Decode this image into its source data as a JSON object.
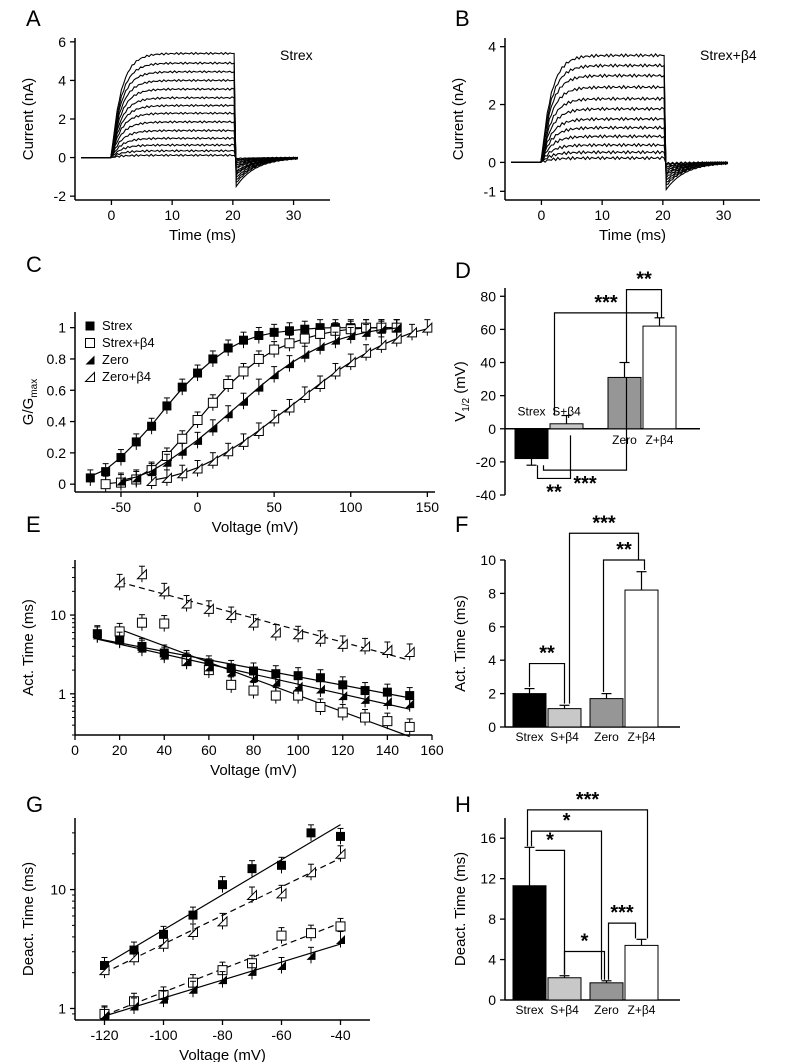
{
  "figure": {
    "panels": {
      "A": "A",
      "B": "B",
      "C": "C",
      "D": "D",
      "E": "E",
      "F": "F",
      "G": "G",
      "H": "H"
    }
  },
  "chart_data": [
    {
      "id": "A",
      "type": "line",
      "annotation": "Strex",
      "xlabel": "Time (ms)",
      "ylabel": "Current (nA)",
      "xlim": [
        -6,
        36
      ],
      "ylim": [
        -2.2,
        6.2
      ],
      "xticks": [
        0,
        10,
        20,
        30
      ],
      "yticks": [
        -2,
        0,
        2,
        4,
        6
      ],
      "series": [
        {
          "plateau": 5.4,
          "tail": -1.6
        },
        {
          "plateau": 4.9,
          "tail": -1.4
        },
        {
          "plateau": 4.45,
          "tail": -1.25
        },
        {
          "plateau": 4.0,
          "tail": -1.1
        },
        {
          "plateau": 3.55,
          "tail": -0.95
        },
        {
          "plateau": 3.1,
          "tail": -0.85
        },
        {
          "plateau": 2.7,
          "tail": -0.75
        },
        {
          "plateau": 2.3,
          "tail": -0.6
        },
        {
          "plateau": 1.85,
          "tail": -0.5
        },
        {
          "plateau": 1.4,
          "tail": -0.4
        },
        {
          "plateau": 1.0,
          "tail": -0.3
        },
        {
          "plateau": 0.65,
          "tail": -0.2
        },
        {
          "plateau": 0.35,
          "tail": -0.12
        },
        {
          "plateau": 0.12,
          "tail": -0.05
        }
      ]
    },
    {
      "id": "B",
      "type": "line",
      "annotation": "Strex+β4",
      "xlabel": "Time (ms)",
      "ylabel": "Current (nA)",
      "xlim": [
        -6,
        36
      ],
      "ylim": [
        -1.3,
        4.3
      ],
      "xticks": [
        0,
        10,
        20,
        30
      ],
      "yticks": [
        -1,
        0,
        2,
        4
      ],
      "series": [
        {
          "plateau": 3.7,
          "tail": -1.0
        },
        {
          "plateau": 3.35,
          "tail": -0.85
        },
        {
          "plateau": 3.0,
          "tail": -0.75
        },
        {
          "plateau": 2.6,
          "tail": -0.65
        },
        {
          "plateau": 2.2,
          "tail": -0.55
        },
        {
          "plateau": 1.85,
          "tail": -0.45
        },
        {
          "plateau": 1.5,
          "tail": -0.38
        },
        {
          "plateau": 1.2,
          "tail": -0.3
        },
        {
          "plateau": 0.9,
          "tail": -0.22
        },
        {
          "plateau": 0.6,
          "tail": -0.15
        },
        {
          "plateau": 0.35,
          "tail": -0.08
        },
        {
          "plateau": 0.15,
          "tail": -0.04
        }
      ]
    },
    {
      "id": "C",
      "type": "scatter",
      "xlabel": "Voltage (mV)",
      "ylabel": "G/G",
      "ylabel_sub": "max",
      "xlim": [
        -80,
        155
      ],
      "ylim": [
        -0.05,
        1.1
      ],
      "xticks": [
        -50,
        0,
        50,
        100,
        150
      ],
      "yticks": [
        0,
        0.2,
        0.4,
        0.6,
        0.8,
        1
      ],
      "series": [
        {
          "name": "Strex",
          "marker": "square-filled",
          "line": "solid",
          "x": [
            -70,
            -60,
            -50,
            -40,
            -30,
            -20,
            -10,
            0,
            10,
            20,
            30,
            40,
            50,
            60,
            70,
            80,
            90,
            100,
            110,
            120,
            130
          ],
          "y": [
            0.04,
            0.08,
            0.17,
            0.27,
            0.37,
            0.5,
            0.62,
            0.71,
            0.8,
            0.87,
            0.92,
            0.95,
            0.97,
            0.98,
            0.99,
            1.0,
            1.0,
            1.0,
            1.0,
            1.0,
            1.0
          ]
        },
        {
          "name": "Strex+β4",
          "marker": "square-open",
          "line": "solid",
          "x": [
            -60,
            -50,
            -40,
            -30,
            -20,
            -10,
            0,
            10,
            20,
            30,
            40,
            50,
            60,
            70,
            80,
            90,
            100,
            110,
            120,
            130
          ],
          "y": [
            0.0,
            0.01,
            0.03,
            0.09,
            0.18,
            0.29,
            0.41,
            0.52,
            0.64,
            0.72,
            0.8,
            0.86,
            0.9,
            0.93,
            0.96,
            0.98,
            0.99,
            1.0,
            1.0,
            1.0
          ]
        },
        {
          "name": "Zero",
          "marker": "triangle-filled",
          "line": "solid",
          "x": [
            -50,
            -40,
            -30,
            -20,
            -10,
            0,
            10,
            20,
            30,
            40,
            50,
            60,
            70,
            80,
            90,
            100,
            110,
            120,
            130
          ],
          "y": [
            0.02,
            0.04,
            0.08,
            0.14,
            0.21,
            0.28,
            0.36,
            0.45,
            0.53,
            0.62,
            0.7,
            0.77,
            0.83,
            0.88,
            0.92,
            0.95,
            0.97,
            0.99,
            1.0
          ]
        },
        {
          "name": "Zero+β4",
          "marker": "triangle-open",
          "line": "solid",
          "x": [
            -30,
            -20,
            -10,
            0,
            10,
            20,
            30,
            40,
            50,
            60,
            70,
            80,
            90,
            100,
            110,
            120,
            130,
            140,
            150
          ],
          "y": [
            0.02,
            0.04,
            0.07,
            0.1,
            0.15,
            0.21,
            0.27,
            0.34,
            0.42,
            0.49,
            0.57,
            0.64,
            0.72,
            0.78,
            0.84,
            0.89,
            0.93,
            0.97,
            1.0
          ]
        }
      ],
      "legend": [
        "Strex",
        "Strex+β4",
        "Zero",
        "Zero+β4"
      ]
    },
    {
      "id": "D",
      "type": "bar",
      "ylabel": "V",
      "ylabel_sub": "1/2",
      "ylabel_unit": " (mV)",
      "ylim": [
        -40,
        85
      ],
      "yticks": [
        -40,
        -20,
        0,
        20,
        40,
        60,
        80
      ],
      "categories": [
        "Strex",
        "S+β4",
        "Zero",
        "Z+β4"
      ],
      "values": [
        -18,
        3,
        31,
        62
      ],
      "errors": [
        4,
        5,
        9,
        5
      ],
      "colors": [
        "#000000",
        "#c8c8c8",
        "#969696",
        "#ffffff"
      ],
      "significance": [
        {
          "pair": [
            0,
            1
          ],
          "label": "**"
        },
        {
          "pair": [
            0,
            2
          ],
          "label": "***"
        },
        {
          "pair": [
            1,
            3
          ],
          "label": "***"
        },
        {
          "pair": [
            2,
            3
          ],
          "label": "**"
        }
      ]
    },
    {
      "id": "E",
      "type": "scatter",
      "yscale": "log",
      "xlabel": "Voltage (mV)",
      "ylabel": "Act. Time (ms)",
      "xlim": [
        0,
        160
      ],
      "ylim": [
        0.3,
        50
      ],
      "xticks": [
        0,
        20,
        40,
        60,
        80,
        100,
        120,
        140,
        160
      ],
      "yticks": [
        1,
        10
      ],
      "series": [
        {
          "name": "Strex",
          "marker": "square-filled",
          "line": "solid",
          "x": [
            10,
            20,
            30,
            40,
            50,
            60,
            70,
            80,
            90,
            100,
            110,
            120,
            130,
            140,
            150
          ],
          "y": [
            5.8,
            4.9,
            4.0,
            3.3,
            2.8,
            2.4,
            2.1,
            1.95,
            1.8,
            1.7,
            1.6,
            1.3,
            1.1,
            1.05,
            0.95
          ]
        },
        {
          "name": "Strex+β4",
          "marker": "square-open",
          "line": "solid",
          "x": [
            20,
            30,
            40,
            50,
            60,
            70,
            80,
            90,
            100,
            110,
            120,
            130,
            140,
            150
          ],
          "y": [
            6.2,
            8.0,
            7.8,
            2.6,
            2.0,
            1.3,
            1.1,
            0.95,
            0.95,
            0.68,
            0.58,
            0.5,
            0.45,
            0.38
          ]
        },
        {
          "name": "Zero",
          "marker": "triangle-filled",
          "line": "solid",
          "x": [
            10,
            20,
            30,
            40,
            50,
            60,
            70,
            80,
            90,
            100,
            110,
            120,
            130,
            140,
            150
          ],
          "y": [
            5.6,
            4.8,
            3.8,
            3.1,
            2.6,
            2.2,
            1.9,
            1.6,
            1.4,
            1.25,
            1.15,
            0.95,
            0.85,
            0.8,
            0.75
          ]
        },
        {
          "name": "Zero+β4",
          "marker": "triangle-open",
          "line": "dashed",
          "x": [
            20,
            30,
            40,
            50,
            60,
            70,
            80,
            90,
            100,
            110,
            120,
            130,
            140,
            150
          ],
          "y": [
            26,
            33,
            20,
            14,
            12,
            10,
            8.0,
            6.0,
            5.7,
            5.0,
            4.3,
            4.0,
            3.6,
            3.4
          ]
        }
      ]
    },
    {
      "id": "F",
      "type": "bar",
      "ylabel": "Act. Time (ms)",
      "ylim": [
        0,
        10
      ],
      "yticks": [
        0,
        2,
        4,
        6,
        8,
        10
      ],
      "categories": [
        "Strex",
        "S+β4",
        "Zero",
        "Z+β4"
      ],
      "values": [
        2.0,
        1.1,
        1.7,
        8.2
      ],
      "errors": [
        0.3,
        0.2,
        0.3,
        1.1
      ],
      "colors": [
        "#000000",
        "#c8c8c8",
        "#969696",
        "#ffffff"
      ],
      "significance": [
        {
          "pair": [
            0,
            1
          ],
          "label": "**"
        },
        {
          "pair": [
            2,
            3
          ],
          "label": "**"
        },
        {
          "pair": [
            1,
            3
          ],
          "label": "***"
        }
      ]
    },
    {
      "id": "G",
      "type": "scatter",
      "yscale": "log",
      "xlabel": "Voltage (mV)",
      "ylabel": "Deact. Time (ms)",
      "xlim": [
        -130,
        -30
      ],
      "ylim": [
        0.8,
        40
      ],
      "xticks": [
        -120,
        -100,
        -80,
        -60,
        -40
      ],
      "yticks": [
        1,
        10
      ],
      "series": [
        {
          "name": "Strex",
          "marker": "square-filled",
          "line": "solid",
          "x": [
            -120,
            -110,
            -100,
            -90,
            -80,
            -70,
            -60,
            -50,
            -40
          ],
          "y": [
            2.3,
            3.1,
            4.2,
            6.1,
            11,
            15,
            16,
            30,
            28
          ]
        },
        {
          "name": "Zero+β4",
          "marker": "triangle-open",
          "line": "dashed",
          "x": [
            -120,
            -110,
            -100,
            -90,
            -80,
            -70,
            -60,
            -50,
            -40
          ],
          "y": [
            2.1,
            2.7,
            3.5,
            4.4,
            5.4,
            9.0,
            9.3,
            14,
            20
          ]
        },
        {
          "name": "Strex+β4",
          "marker": "square-open",
          "line": "dashed",
          "x": [
            -120,
            -110,
            -100,
            -90,
            -80,
            -70,
            -60,
            -50,
            -40
          ],
          "y": [
            0.9,
            1.15,
            1.3,
            1.65,
            2.1,
            2.4,
            4.1,
            4.3,
            4.9
          ]
        },
        {
          "name": "Zero",
          "marker": "triangle-filled",
          "line": "solid",
          "x": [
            -120,
            -110,
            -100,
            -90,
            -80,
            -70,
            -60,
            -50,
            -40
          ],
          "y": [
            0.88,
            1.05,
            1.2,
            1.45,
            1.75,
            2.05,
            2.3,
            2.8,
            3.8
          ]
        }
      ]
    },
    {
      "id": "H",
      "type": "bar",
      "ylabel": "Deact. Time (ms)",
      "ylim": [
        0,
        18
      ],
      "yticks": [
        0,
        4,
        8,
        12,
        16
      ],
      "categories": [
        "Strex",
        "S+β4",
        "Zero",
        "Z+β4"
      ],
      "values": [
        11.3,
        2.2,
        1.7,
        5.4
      ],
      "errors": [
        3.8,
        0.2,
        0.2,
        0.6
      ],
      "colors": [
        "#000000",
        "#c8c8c8",
        "#969696",
        "#ffffff"
      ],
      "significance": [
        {
          "pair": [
            0,
            1
          ],
          "label": "*"
        },
        {
          "pair": [
            0,
            2
          ],
          "label": "*"
        },
        {
          "pair": [
            0,
            3
          ],
          "label": "***"
        },
        {
          "pair": [
            1,
            2
          ],
          "label": "*"
        },
        {
          "pair": [
            2,
            3
          ],
          "label": "***"
        }
      ]
    }
  ]
}
